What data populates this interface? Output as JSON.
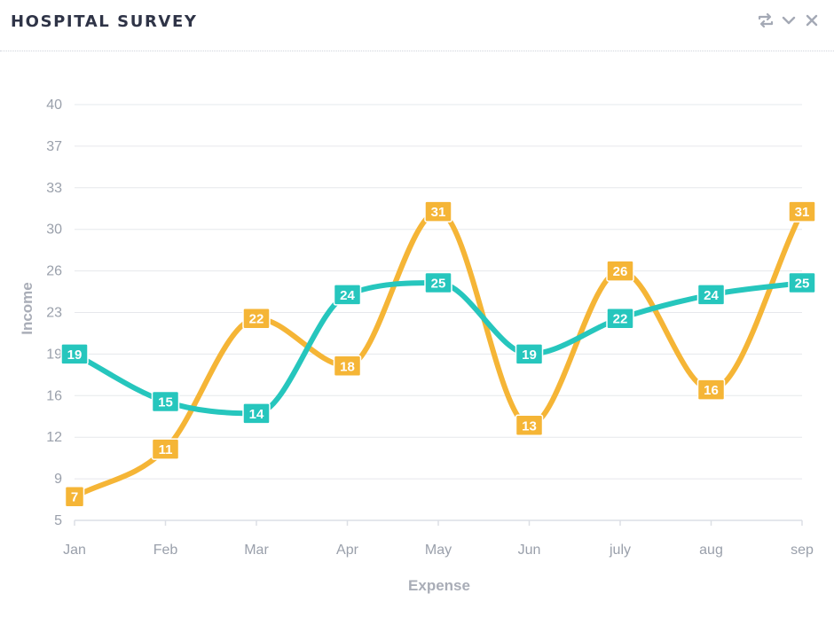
{
  "header": {
    "title": "HOSPITAL SURVEY",
    "icons": [
      "refresh-icon",
      "chevron-down-icon",
      "close-icon"
    ]
  },
  "chart_data": {
    "type": "line",
    "title": "",
    "xlabel": "Expense",
    "ylabel": "Income",
    "categories": [
      "Jan",
      "Feb",
      "Mar",
      "Apr",
      "May",
      "Jun",
      "july",
      "aug",
      "sep"
    ],
    "ylim": [
      5,
      40
    ],
    "yticks": [
      "5",
      "9",
      "12",
      "16",
      "19",
      "23",
      "26",
      "30",
      "33",
      "37",
      "40"
    ],
    "grid": true,
    "smooth": true,
    "series": [
      {
        "color": "#f5b536",
        "values": [
          7,
          11,
          22,
          18,
          31,
          13,
          26,
          16,
          31
        ]
      },
      {
        "color": "#26c6bd",
        "values": [
          19,
          15,
          14,
          24,
          25,
          19,
          22,
          24,
          25
        ]
      }
    ]
  }
}
